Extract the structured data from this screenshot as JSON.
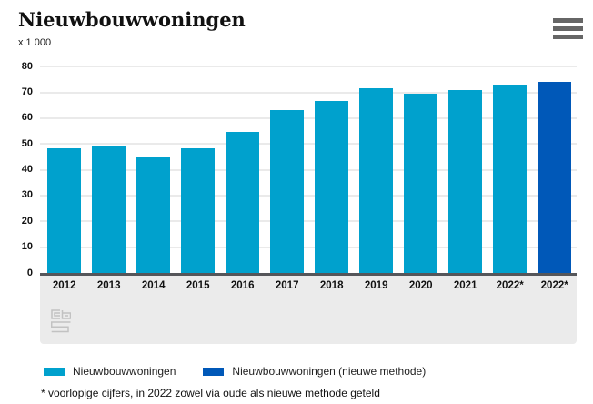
{
  "header": {
    "title": "Nieuwbouwwoningen",
    "subtitle": "x 1 000"
  },
  "menu": {
    "icon": "hamburger-menu-icon"
  },
  "chart_data": {
    "type": "bar",
    "title": "Nieuwbouwwoningen",
    "unit_label": "x 1 000",
    "categories": [
      "2012",
      "2013",
      "2014",
      "2015",
      "2016",
      "2017",
      "2018",
      "2019",
      "2020",
      "2021",
      "2022*",
      "2022*"
    ],
    "series": [
      {
        "name": "Nieuwbouwwoningen",
        "color": "#00a1cd",
        "values": [
          48.5,
          49.5,
          45,
          48.5,
          54.5,
          63,
          66.5,
          71.5,
          69.5,
          71,
          73,
          null
        ]
      },
      {
        "name": "Nieuwbouwwoningen (nieuwe methode)",
        "color": "#0058b8",
        "values": [
          null,
          null,
          null,
          null,
          null,
          null,
          null,
          null,
          null,
          null,
          null,
          74
        ]
      }
    ],
    "ylim": [
      0,
      80
    ],
    "ytick_step": 10,
    "yticks": [
      0,
      10,
      20,
      30,
      40,
      50,
      60,
      70,
      80
    ],
    "grid": true,
    "legend_position": "bottom"
  },
  "legend": {
    "items": [
      {
        "label": "Nieuwbouwwoningen",
        "color": "#00a1cd"
      },
      {
        "label": "Nieuwbouwwoningen (nieuwe methode)",
        "color": "#0058b8"
      }
    ]
  },
  "footnote": "* voorlopige cijfers, in 2022 zowel via oude als nieuwe methode geteld",
  "logo": "cbs-logo",
  "colors": {
    "axis": "#55565a",
    "band": "#ebebeb",
    "grid": "#eaeaea",
    "text": "#1a1a1a",
    "menu_icon": "#666666"
  }
}
